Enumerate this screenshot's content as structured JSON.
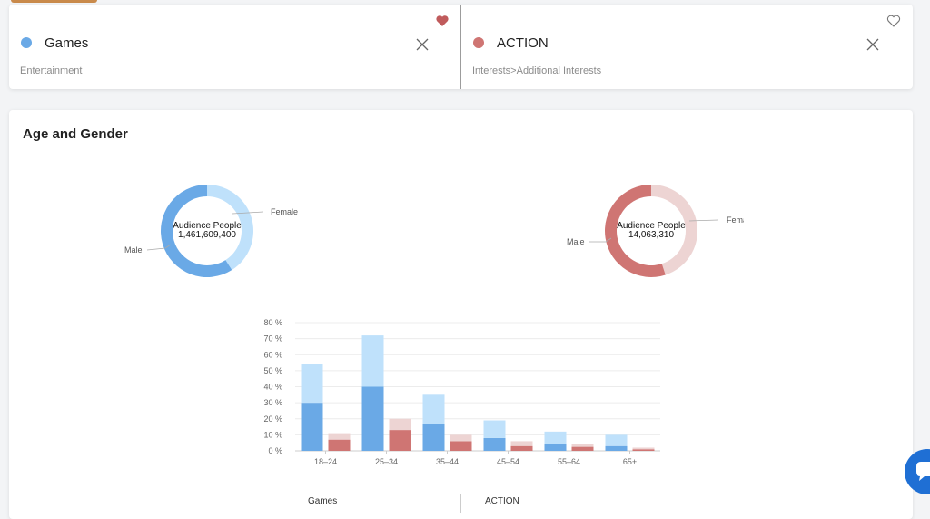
{
  "compare": {
    "items": [
      {
        "title": "Games",
        "subtitle": "Entertainment",
        "color": "#6aa9e6",
        "favorited": true
      },
      {
        "title": "ACTION",
        "subtitle": "Interests>Additional Interests",
        "color": "#cf7573",
        "favorited": false
      }
    ]
  },
  "age_section": {
    "title": "Age and Gender",
    "donuts": [
      {
        "center_label": "Audience People",
        "center_value": "1,461,609,400",
        "male_label": "Male",
        "female_label": "Female",
        "male_pct": 0.59,
        "male_color": "#6aa9e6",
        "female_color": "#bfe1fb"
      },
      {
        "center_label": "Audience People",
        "center_value": "14,063,310",
        "male_label": "Male",
        "female_label": "Female",
        "male_pct": 0.55,
        "male_color": "#cf7573",
        "female_color": "#edd4d3"
      }
    ],
    "bottom_labels": [
      "Games",
      "ACTION"
    ]
  },
  "chart_data": {
    "type": "bar",
    "stacked": true,
    "categories": [
      "18–24",
      "25–34",
      "35–44",
      "45–54",
      "55–64",
      "65+"
    ],
    "ylim": [
      0,
      80
    ],
    "yticks": [
      "0 %",
      "10 %",
      "20 %",
      "30 %",
      "40 %",
      "50 %",
      "60 %",
      "70 %",
      "80 %"
    ],
    "groups": [
      {
        "name": "Games",
        "male": [
          30,
          40,
          17,
          8,
          4,
          3
        ],
        "female": [
          24,
          32,
          18,
          11,
          8,
          7
        ],
        "male_color": "#6aa9e6",
        "female_color": "#bfe1fb"
      },
      {
        "name": "ACTION",
        "male": [
          7,
          13,
          6,
          3,
          2.5,
          1
        ],
        "female": [
          4,
          7,
          4,
          3,
          1.5,
          1
        ],
        "male_color": "#cf7573",
        "female_color": "#edd4d3"
      }
    ]
  }
}
